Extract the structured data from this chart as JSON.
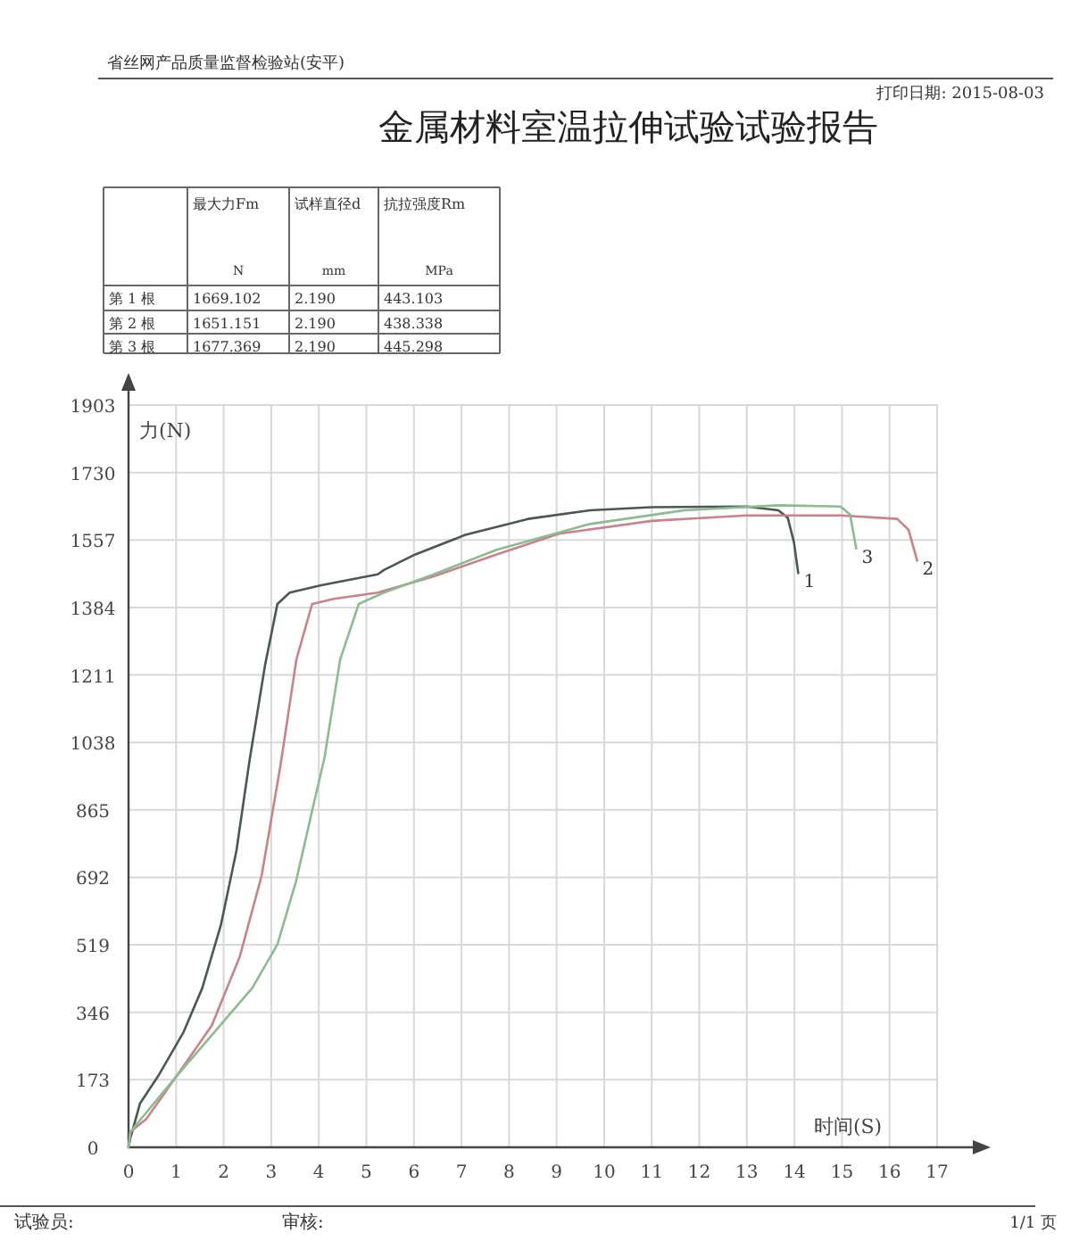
{
  "chart_data": [
    {
      "type": "other",
      "title": "金属材料室温拉伸试验试验报告",
      "annotations": [
        "省丝网产品质量监督检验站(安平)",
        "打印日期: 2015-08-03",
        "试验员:",
        "审核:",
        "1/1 页"
      ]
    },
    {
      "type": "other",
      "annotations": [
        "最大力Fm",
        "试样直径d",
        "抗拉强度Rm",
        "N",
        "mm",
        "MPa",
        "第 1 根",
        "1669.102",
        "2.190",
        "443.103",
        "第 2 根",
        "1651.151",
        "2.190",
        "438.338",
        "第 3 根",
        "1677.369",
        "2.190",
        "445.298"
      ]
    },
    {
      "type": "line",
      "xlabel": "时间(S)",
      "ylabel": "力(N)",
      "xlim": [
        0,
        17
      ],
      "xticks": [
        0,
        1,
        2,
        3,
        4,
        5,
        6,
        7,
        8,
        9,
        10,
        11,
        12,
        13,
        14,
        15,
        16,
        17
      ],
      "ylim": [
        0,
        1903
      ],
      "yticks": [
        0,
        173,
        346,
        519,
        692,
        865,
        1038,
        1211,
        1384,
        1557,
        1730,
        1903
      ],
      "grid": true,
      "line_style": "solid",
      "series": [
        {
          "name": "1",
          "color": "#4a5752",
          "x": [
            0,
            0.04,
            0.24,
            0.63,
            1.16,
            1.55,
            1.94,
            2.27,
            2.54,
            2.87,
            3.13,
            3.39,
            4.05,
            5.24,
            5.37,
            6.03,
            7.08,
            8.4,
            9.7,
            11.0,
            13.0,
            13.66,
            13.86,
            13.99,
            14.08
          ],
          "values": [
            0,
            24,
            112,
            184,
            296,
            408,
            569,
            761,
            988,
            1236,
            1393,
            1422,
            1441,
            1469,
            1480,
            1520,
            1570,
            1611,
            1633,
            1641,
            1643,
            1633,
            1614,
            1551,
            1472
          ]
        },
        {
          "name": "2",
          "color": "#c9828a",
          "x": [
            0,
            0.04,
            0.37,
            1.02,
            1.75,
            2.34,
            2.8,
            3.2,
            3.53,
            3.86,
            4.32,
            5.24,
            6.42,
            7.74,
            9.05,
            11.0,
            13.0,
            14.97,
            16.16,
            16.4,
            16.58
          ],
          "values": [
            0,
            40,
            72,
            184,
            312,
            489,
            697,
            983,
            1251,
            1393,
            1406,
            1422,
            1464,
            1520,
            1573,
            1606,
            1620,
            1620,
            1611,
            1583,
            1504
          ]
        },
        {
          "name": "3",
          "color": "#8bbb8e",
          "x": [
            0,
            0.04,
            1.02,
            1.81,
            2.6,
            3.13,
            3.52,
            3.85,
            4.12,
            4.45,
            4.84,
            5.37,
            6.42,
            7.74,
            9.7,
            11.68,
            13.66,
            14.97,
            15.17,
            15.3
          ],
          "values": [
            0,
            40,
            184,
            296,
            408,
            520,
            681,
            857,
            999,
            1251,
            1393,
            1422,
            1469,
            1532,
            1598,
            1633,
            1646,
            1643,
            1622,
            1535
          ]
        }
      ]
    }
  ]
}
